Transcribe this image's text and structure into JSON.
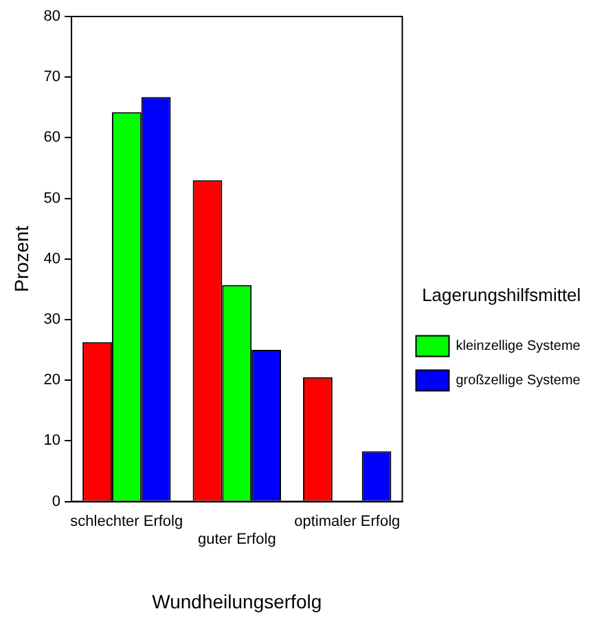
{
  "chart_data": {
    "type": "bar",
    "xlabel": "Wundheilungserfolg",
    "ylabel": "Prozent",
    "legend_title": "Lagerungshilfsmittel",
    "categories": [
      "schlechter Erfolg",
      "guter Erfolg",
      "optimaler Erfolg"
    ],
    "series": [
      {
        "color": "#ff0000",
        "values": [
          26.3,
          53,
          20.5
        ]
      },
      {
        "name": "kleinzellige Systeme",
        "color": "#00ff00",
        "values": [
          64.2,
          35.7,
          0
        ]
      },
      {
        "name": "großzellige Systeme",
        "color": "#0000ff",
        "values": [
          66.7,
          25,
          8.3
        ]
      }
    ],
    "ylim": [
      0,
      80
    ],
    "yticks": [
      0,
      10,
      20,
      30,
      40,
      50,
      60,
      70,
      80
    ],
    "grid": false,
    "legend": "right"
  }
}
